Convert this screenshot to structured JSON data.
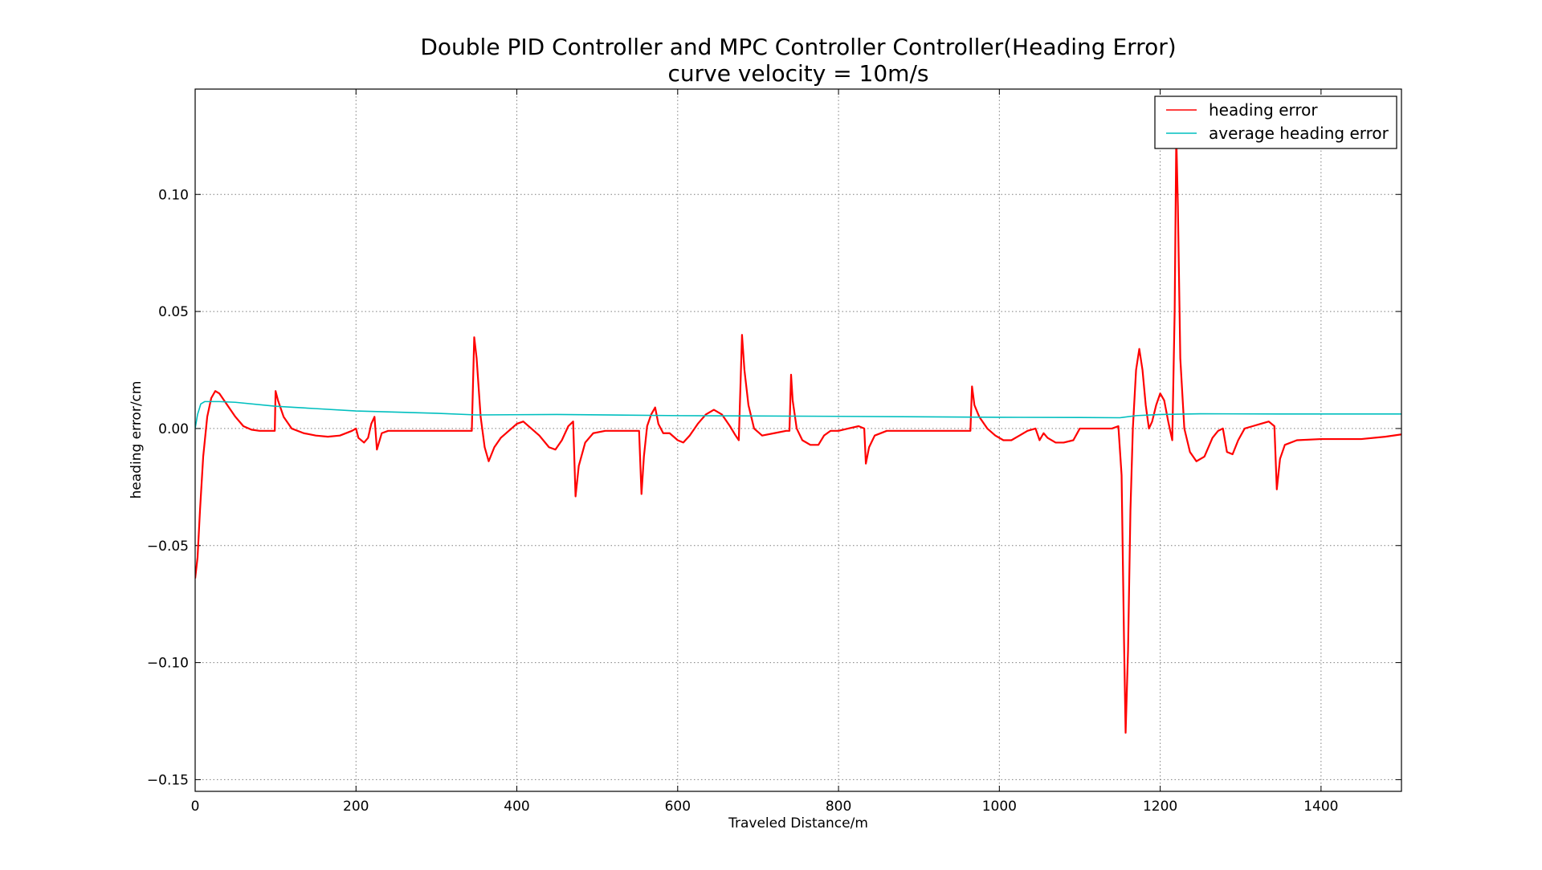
{
  "chart_data": {
    "type": "line",
    "title": "Double PID Controller and MPC Controller Controller(Heading Error)",
    "subtitle": "curve velocity = 10m/s",
    "xlabel": "Traveled Distance/m",
    "ylabel": "heading error/cm",
    "xlim": [
      0,
      1500
    ],
    "ylim": [
      -0.155,
      0.145
    ],
    "xticks": [
      0,
      200,
      400,
      600,
      800,
      1000,
      1200,
      1400
    ],
    "xtick_labels": [
      "0",
      "200",
      "400",
      "600",
      "800",
      "1000",
      "1200",
      "1400"
    ],
    "yticks": [
      -0.15,
      -0.1,
      -0.05,
      0.0,
      0.05,
      0.1
    ],
    "ytick_labels": [
      "−0.15",
      "−0.10",
      "−0.05",
      "0.00",
      "0.05",
      "0.10"
    ],
    "grid": true,
    "legend_position": "top-right",
    "series": [
      {
        "name": "heading error",
        "color": "#ff0000",
        "points": [
          [
            0,
            -0.064
          ],
          [
            3,
            -0.055
          ],
          [
            6,
            -0.035
          ],
          [
            10,
            -0.012
          ],
          [
            15,
            0.005
          ],
          [
            20,
            0.013
          ],
          [
            25,
            0.016
          ],
          [
            30,
            0.015
          ],
          [
            40,
            0.01
          ],
          [
            50,
            0.005
          ],
          [
            60,
            0.001
          ],
          [
            70,
            -0.0005
          ],
          [
            80,
            -0.001
          ],
          [
            90,
            -0.001
          ],
          [
            99,
            -0.001
          ],
          [
            100,
            0.016
          ],
          [
            103,
            0.012
          ],
          [
            110,
            0.005
          ],
          [
            120,
            0.0
          ],
          [
            135,
            -0.002
          ],
          [
            150,
            -0.003
          ],
          [
            165,
            -0.0035
          ],
          [
            180,
            -0.003
          ],
          [
            195,
            -0.001
          ],
          [
            200,
            0.0
          ],
          [
            203,
            -0.004
          ],
          [
            210,
            -0.006
          ],
          [
            215,
            -0.004
          ],
          [
            219,
            0.002
          ],
          [
            223,
            0.005
          ],
          [
            226,
            -0.009
          ],
          [
            232,
            -0.002
          ],
          [
            240,
            -0.001
          ],
          [
            260,
            -0.001
          ],
          [
            300,
            -0.001
          ],
          [
            344,
            -0.001
          ],
          [
            347,
            0.039
          ],
          [
            350,
            0.03
          ],
          [
            355,
            0.005
          ],
          [
            360,
            -0.008
          ],
          [
            365,
            -0.014
          ],
          [
            372,
            -0.008
          ],
          [
            380,
            -0.004
          ],
          [
            390,
            -0.001
          ],
          [
            400,
            0.002
          ],
          [
            408,
            0.003
          ],
          [
            418,
            0.0
          ],
          [
            428,
            -0.003
          ],
          [
            440,
            -0.008
          ],
          [
            448,
            -0.009
          ],
          [
            456,
            -0.005
          ],
          [
            464,
            0.001
          ],
          [
            470,
            0.003
          ],
          [
            473,
            -0.029
          ],
          [
            477,
            -0.016
          ],
          [
            485,
            -0.006
          ],
          [
            495,
            -0.002
          ],
          [
            510,
            -0.001
          ],
          [
            530,
            -0.001
          ],
          [
            552,
            -0.001
          ],
          [
            555,
            -0.028
          ],
          [
            558,
            -0.012
          ],
          [
            562,
            0.001
          ],
          [
            567,
            0.006
          ],
          [
            572,
            0.009
          ],
          [
            576,
            0.002
          ],
          [
            582,
            -0.002
          ],
          [
            590,
            -0.002
          ],
          [
            600,
            -0.005
          ],
          [
            607,
            -0.006
          ],
          [
            615,
            -0.003
          ],
          [
            625,
            0.002
          ],
          [
            635,
            0.006
          ],
          [
            645,
            0.008
          ],
          [
            655,
            0.006
          ],
          [
            665,
            0.001
          ],
          [
            672,
            -0.003
          ],
          [
            676,
            -0.005
          ],
          [
            680,
            0.04
          ],
          [
            683,
            0.025
          ],
          [
            688,
            0.01
          ],
          [
            695,
            0.0
          ],
          [
            705,
            -0.003
          ],
          [
            720,
            -0.002
          ],
          [
            735,
            -0.001
          ],
          [
            739,
            -0.001
          ],
          [
            741,
            0.023
          ],
          [
            743,
            0.012
          ],
          [
            748,
            0.0
          ],
          [
            755,
            -0.005
          ],
          [
            765,
            -0.007
          ],
          [
            775,
            -0.007
          ],
          [
            782,
            -0.003
          ],
          [
            790,
            -0.001
          ],
          [
            800,
            -0.001
          ],
          [
            812,
            0.0
          ],
          [
            825,
            0.001
          ],
          [
            832,
            0.0
          ],
          [
            834,
            -0.015
          ],
          [
            838,
            -0.008
          ],
          [
            845,
            -0.003
          ],
          [
            860,
            -0.001
          ],
          [
            900,
            -0.001
          ],
          [
            964,
            -0.001
          ],
          [
            966,
            0.018
          ],
          [
            969,
            0.01
          ],
          [
            975,
            0.005
          ],
          [
            985,
            0.0
          ],
          [
            995,
            -0.003
          ],
          [
            1005,
            -0.005
          ],
          [
            1015,
            -0.005
          ],
          [
            1025,
            -0.003
          ],
          [
            1035,
            -0.001
          ],
          [
            1045,
            0.0
          ],
          [
            1050,
            -0.005
          ],
          [
            1055,
            -0.002
          ],
          [
            1060,
            -0.004
          ],
          [
            1070,
            -0.006
          ],
          [
            1080,
            -0.006
          ],
          [
            1092,
            -0.005
          ],
          [
            1100,
            0.0
          ],
          [
            1110,
            0.0
          ],
          [
            1120,
            0.0
          ],
          [
            1130,
            0.0
          ],
          [
            1140,
            0.0
          ],
          [
            1148,
            0.001
          ],
          [
            1152,
            -0.02
          ],
          [
            1155,
            -0.09
          ],
          [
            1157,
            -0.13
          ],
          [
            1160,
            -0.095
          ],
          [
            1163,
            -0.035
          ],
          [
            1166,
            0.0
          ],
          [
            1170,
            0.025
          ],
          [
            1174,
            0.034
          ],
          [
            1178,
            0.025
          ],
          [
            1182,
            0.01
          ],
          [
            1186,
            -0.0
          ],
          [
            1190,
            0.003
          ],
          [
            1195,
            0.01
          ],
          [
            1200,
            0.015
          ],
          [
            1205,
            0.012
          ],
          [
            1210,
            0.003
          ],
          [
            1215,
            -0.005
          ],
          [
            1218,
            0.05
          ],
          [
            1220,
            0.125
          ],
          [
            1222,
            0.095
          ],
          [
            1225,
            0.03
          ],
          [
            1230,
            0.0
          ],
          [
            1237,
            -0.01
          ],
          [
            1245,
            -0.014
          ],
          [
            1255,
            -0.012
          ],
          [
            1265,
            -0.004
          ],
          [
            1272,
            -0.001
          ],
          [
            1278,
            0.0
          ],
          [
            1283,
            -0.01
          ],
          [
            1290,
            -0.011
          ],
          [
            1297,
            -0.005
          ],
          [
            1305,
            0.0
          ],
          [
            1315,
            0.001
          ],
          [
            1325,
            0.002
          ],
          [
            1335,
            0.003
          ],
          [
            1342,
            0.001
          ],
          [
            1345,
            -0.026
          ],
          [
            1349,
            -0.013
          ],
          [
            1355,
            -0.007
          ],
          [
            1370,
            -0.005
          ],
          [
            1400,
            -0.0045
          ],
          [
            1450,
            -0.0045
          ],
          [
            1480,
            -0.0035
          ],
          [
            1500,
            -0.0025
          ]
        ]
      },
      {
        "name": "average heading error",
        "color": "#00bfbf",
        "points": [
          [
            0,
            0.0
          ],
          [
            3,
            0.006
          ],
          [
            7,
            0.0105
          ],
          [
            12,
            0.0115
          ],
          [
            30,
            0.0115
          ],
          [
            50,
            0.0112
          ],
          [
            100,
            0.0095
          ],
          [
            150,
            0.0085
          ],
          [
            200,
            0.0075
          ],
          [
            300,
            0.0065
          ],
          [
            350,
            0.0058
          ],
          [
            450,
            0.006
          ],
          [
            600,
            0.0055
          ],
          [
            800,
            0.0052
          ],
          [
            1000,
            0.0048
          ],
          [
            1100,
            0.0047
          ],
          [
            1150,
            0.0046
          ],
          [
            1170,
            0.0055
          ],
          [
            1200,
            0.006
          ],
          [
            1250,
            0.0063
          ],
          [
            1350,
            0.0062
          ],
          [
            1500,
            0.0062
          ]
        ]
      }
    ]
  }
}
